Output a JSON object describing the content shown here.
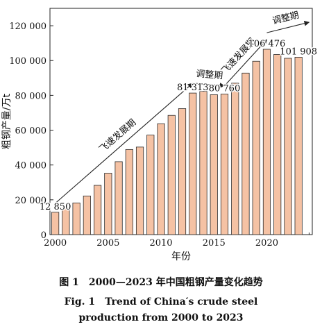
{
  "chart_data": {
    "type": "bar",
    "ylabel": "粗钢产量/万t",
    "xlabel": "年份",
    "ylim": [
      0,
      130000
    ],
    "xlim": [
      1999.5,
      2024.3
    ],
    "x_ticks": [
      "2000",
      "2005",
      "2010",
      "2015",
      "2020"
    ],
    "y_ticks": [
      "0",
      "20 000",
      "40 000",
      "60 000",
      "80 000",
      "100 000",
      "120 000"
    ],
    "bar_color": "#f5c2a4",
    "bar_edge": "#2a2a2a",
    "categories": [
      2000,
      2001,
      2002,
      2003,
      2004,
      2005,
      2006,
      2007,
      2008,
      2009,
      2010,
      2011,
      2012,
      2013,
      2014,
      2015,
      2016,
      2017,
      2018,
      2019,
      2020,
      2021,
      2022,
      2023
    ],
    "values": [
      12850,
      15200,
      18200,
      22200,
      28300,
      35300,
      41900,
      48900,
      50300,
      57200,
      63700,
      68500,
      72400,
      81313,
      82300,
      80400,
      80760,
      87000,
      92800,
      99600,
      106476,
      103500,
      101300,
      101908
    ],
    "data_labels": [
      {
        "year": 2000,
        "text": "12 850"
      },
      {
        "year": 2013,
        "text": "81 313"
      },
      {
        "year": 2016,
        "text": "80 760"
      },
      {
        "year": 2020,
        "text": "106 476"
      },
      {
        "year": 2023,
        "text": "101 908"
      }
    ],
    "annotations": [
      {
        "text": "飞速发展期",
        "from": [
          2000,
          18000
        ],
        "to": [
          2013,
          87000
        ]
      },
      {
        "text": "调整期",
        "from": [
          2013,
          87000
        ],
        "to": [
          2016,
          85500
        ]
      },
      {
        "text": "飞速发展期",
        "from": [
          2016,
          85500
        ],
        "to": [
          2020,
          112000
        ]
      },
      {
        "text": "调整期",
        "from": [
          2020,
          116000
        ],
        "to": [
          2024,
          122000
        ]
      }
    ]
  },
  "caption": {
    "chinese": "图 1　2000—2023 年中国粗钢产量变化趋势",
    "english_line1": "Fig. 1　Trend of China′s crude steel",
    "english_line2": "production from 2000 to 2023"
  }
}
